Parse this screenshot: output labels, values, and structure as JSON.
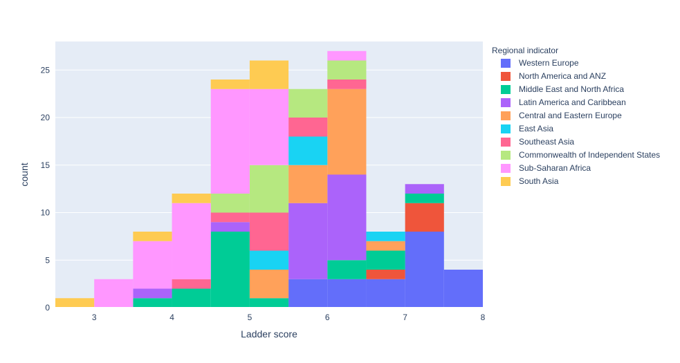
{
  "chart_data": {
    "type": "bar",
    "mode": "stacked-histogram",
    "xlabel": "Ladder score",
    "ylabel": "count",
    "xlim": [
      2.5,
      8
    ],
    "ylim": [
      0,
      28
    ],
    "bin_width": 0.5,
    "bin_starts": [
      2.5,
      3.0,
      3.5,
      4.0,
      4.5,
      5.0,
      5.5,
      6.0,
      6.5,
      7.0,
      7.5
    ],
    "x_ticks": [
      3,
      4,
      5,
      6,
      7,
      8
    ],
    "y_ticks": [
      0,
      5,
      10,
      15,
      20,
      25
    ],
    "grid": true,
    "legend_title": "Regional indicator",
    "legend_position": "right",
    "series": [
      {
        "name": "Western Europe",
        "color": "#636efa",
        "values": [
          0,
          0,
          0,
          0,
          0,
          0,
          3,
          3,
          3,
          8,
          4
        ]
      },
      {
        "name": "North America and ANZ",
        "color": "#ef553b",
        "values": [
          0,
          0,
          0,
          0,
          0,
          0,
          0,
          0,
          1,
          3,
          0
        ]
      },
      {
        "name": "Middle East and North Africa",
        "color": "#00cc96",
        "values": [
          0,
          0,
          1,
          2,
          8,
          1,
          0,
          2,
          2,
          1,
          0
        ]
      },
      {
        "name": "Latin America and Caribbean",
        "color": "#ab63fa",
        "values": [
          0,
          0,
          1,
          0,
          1,
          0,
          8,
          9,
          0,
          1,
          0
        ]
      },
      {
        "name": "Central and Eastern Europe",
        "color": "#ffa15a",
        "values": [
          0,
          0,
          0,
          0,
          0,
          3,
          4,
          9,
          1,
          0,
          0
        ]
      },
      {
        "name": "East Asia",
        "color": "#19d3f3",
        "values": [
          0,
          0,
          0,
          0,
          0,
          2,
          3,
          0,
          1,
          0,
          0
        ]
      },
      {
        "name": "Southeast Asia",
        "color": "#ff6692",
        "values": [
          0,
          0,
          0,
          1,
          1,
          4,
          2,
          1,
          0,
          0,
          0
        ]
      },
      {
        "name": "Commonwealth of Independent States",
        "color": "#b6e880",
        "values": [
          0,
          0,
          0,
          0,
          2,
          5,
          3,
          2,
          0,
          0,
          0
        ]
      },
      {
        "name": "Sub-Saharan Africa",
        "color": "#ff97ff",
        "values": [
          0,
          3,
          5,
          8,
          11,
          8,
          0,
          1,
          0,
          0,
          0
        ]
      },
      {
        "name": "South Asia",
        "color": "#fecb52",
        "values": [
          1,
          0,
          1,
          1,
          1,
          3,
          0,
          0,
          0,
          0,
          0
        ]
      }
    ]
  },
  "style": {
    "plot_background": "#e5ecf6",
    "grid_color": "#ffffff",
    "text_color": "#2a3f5f"
  }
}
